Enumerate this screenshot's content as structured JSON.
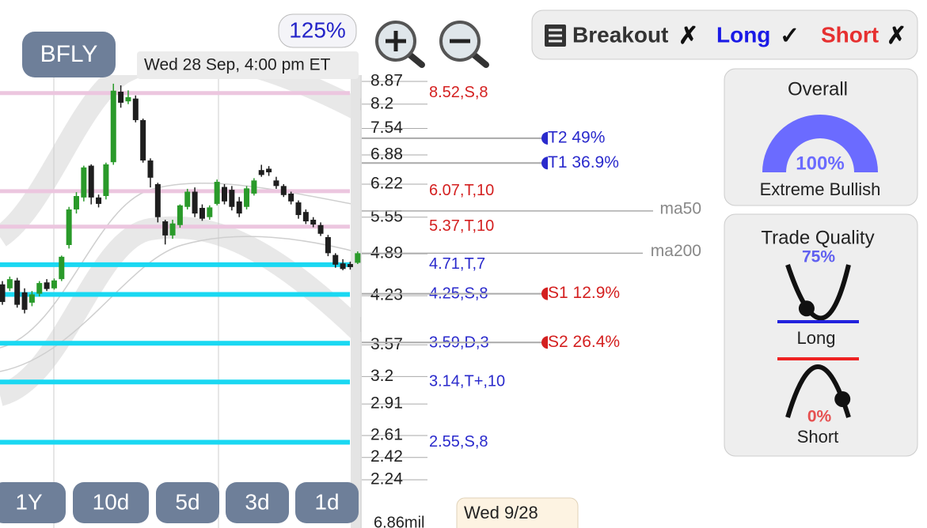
{
  "toolbar": {
    "ticker": "BFLY",
    "zoom": "125%",
    "datetime": "Wed 28 Sep, 4:00 pm ET"
  },
  "chart_data": {
    "type": "candlestick",
    "log_scale": true,
    "ylim": [
      2.24,
      8.87
    ],
    "yticks": [
      8.87,
      8.2,
      7.54,
      6.88,
      6.22,
      5.55,
      4.89,
      4.23,
      3.57,
      3.2,
      2.91,
      2.61,
      2.42,
      2.24
    ],
    "up_color": "#2a9a2a",
    "down_color": "#1e1e1e",
    "open": [
      4.4,
      4.34,
      4.46,
      4.28,
      4.13,
      4.26,
      4.43,
      4.34,
      4.48,
      5.04,
      5.7,
      5.94,
      6.63,
      5.94,
      5.97,
      6.71,
      8.56,
      8.28,
      8.36,
      7.76,
      6.75,
      6.22,
      5.47,
      5.21,
      5.4,
      5.75,
      6.06,
      5.73,
      5.55,
      5.81,
      6.16,
      6.1,
      5.86,
      5.75,
      6.02,
      6.53,
      6.56,
      6.3,
      6.18,
      6.02,
      5.84,
      5.65,
      5.5,
      5.4,
      5.18,
      4.87,
      4.73,
      4.72,
      4.74
    ],
    "high": [
      4.45,
      4.52,
      4.5,
      4.34,
      4.3,
      4.45,
      4.48,
      4.49,
      4.86,
      5.75,
      6.05,
      6.63,
      6.66,
      6.0,
      6.7,
      8.8,
      8.75,
      8.6,
      8.45,
      7.8,
      6.8,
      6.25,
      5.5,
      5.5,
      5.8,
      6.12,
      6.15,
      5.8,
      5.78,
      6.32,
      6.22,
      6.18,
      5.95,
      6.18,
      6.35,
      6.65,
      6.62,
      6.38,
      6.22,
      6.06,
      5.88,
      5.7,
      5.55,
      5.45,
      5.22,
      4.9,
      4.8,
      4.76,
      4.93
    ],
    "low": [
      4.1,
      4.3,
      4.06,
      3.98,
      4.08,
      4.22,
      4.3,
      4.32,
      4.45,
      4.98,
      5.62,
      5.86,
      5.8,
      5.74,
      5.9,
      6.65,
      8.1,
      8.2,
      7.7,
      6.7,
      6.15,
      5.45,
      5.05,
      5.15,
      5.35,
      5.7,
      5.55,
      5.48,
      5.5,
      5.78,
      5.8,
      5.68,
      5.55,
      5.7,
      5.98,
      6.38,
      6.4,
      6.12,
      5.95,
      5.8,
      5.52,
      5.42,
      5.36,
      5.2,
      4.85,
      4.66,
      4.62,
      4.63,
      4.72
    ],
    "close": [
      4.14,
      4.48,
      4.1,
      4.03,
      4.25,
      4.42,
      4.33,
      4.46,
      4.84,
      5.7,
      5.97,
      6.59,
      5.94,
      5.81,
      6.66,
      8.59,
      8.24,
      8.4,
      7.76,
      6.75,
      6.36,
      5.55,
      5.21,
      5.43,
      5.78,
      6.06,
      5.62,
      5.52,
      5.74,
      6.27,
      5.86,
      5.75,
      5.62,
      6.13,
      6.3,
      6.42,
      6.48,
      6.18,
      5.99,
      5.86,
      5.59,
      5.47,
      5.41,
      5.24,
      4.9,
      4.71,
      4.64,
      4.67,
      4.9
    ],
    "levels": [
      {
        "value": 8.52,
        "label": "8.52,S,8",
        "line_color": "#ecc6df",
        "label_color": "#d42020"
      },
      {
        "value": 6.07,
        "label": "6.07,T,10",
        "line_color": "#ecc6df",
        "label_color": "#d42020"
      },
      {
        "value": 5.37,
        "label": "5.37,T,10",
        "line_color": "#ecc6df",
        "label_color": "#d42020"
      },
      {
        "value": 4.71,
        "label": "4.71,T,7",
        "line_color": "#1ad8f2",
        "label_color": "#2a2acc"
      },
      {
        "value": 4.25,
        "label": "4.25,S,8",
        "line_color": "#1ad8f2",
        "label_color": "#2a2acc"
      },
      {
        "value": 3.59,
        "label": "3.59,D,3",
        "line_color": "#1ad8f2",
        "label_color": "#2a2acc"
      },
      {
        "value": 3.14,
        "label": "3.14,T+,10",
        "line_color": "#1ad8f2",
        "label_color": "#2a2acc"
      },
      {
        "value": 2.55,
        "label": "2.55,S,8",
        "line_color": "#1ad8f2",
        "label_color": "#2a2acc"
      }
    ],
    "targets": [
      {
        "value": 7.29,
        "label": "T2 49%",
        "color": "#2a2acc"
      },
      {
        "value": 6.69,
        "label": "T1 36.9%",
        "color": "#2a2acc"
      },
      {
        "value": 4.26,
        "label": "S1 12.9%",
        "color": "#d42020"
      },
      {
        "value": 3.6,
        "label": "S2 26.4%",
        "color": "#d42020"
      }
    ],
    "moving_averages": [
      {
        "name": "ma50",
        "value": 5.67
      },
      {
        "name": "ma200",
        "value": 4.9
      }
    ],
    "volume_label": "6.86mil"
  },
  "periods": [
    "1Y",
    "10d",
    "5d",
    "3d",
    "1d"
  ],
  "footer_date": "Wed 9/28",
  "signals": [
    {
      "label": "Breakout",
      "state": "✗",
      "color": "#333333"
    },
    {
      "label": "Long",
      "state": "✓",
      "color": "#1a1ae6"
    },
    {
      "label": "Short",
      "state": "✗",
      "color": "#e63030"
    }
  ],
  "overall": {
    "title": "Overall",
    "value": 100,
    "value_label": "100%",
    "rating": "Extreme Bullish",
    "color": "#6b6bff"
  },
  "trade_quality": {
    "title": "Trade Quality",
    "long": {
      "label": "Long",
      "value": 75,
      "value_label": "75%",
      "color": "#6060f0"
    },
    "short": {
      "label": "Short",
      "value": 0,
      "value_label": "0%",
      "color": "#e65050"
    }
  }
}
